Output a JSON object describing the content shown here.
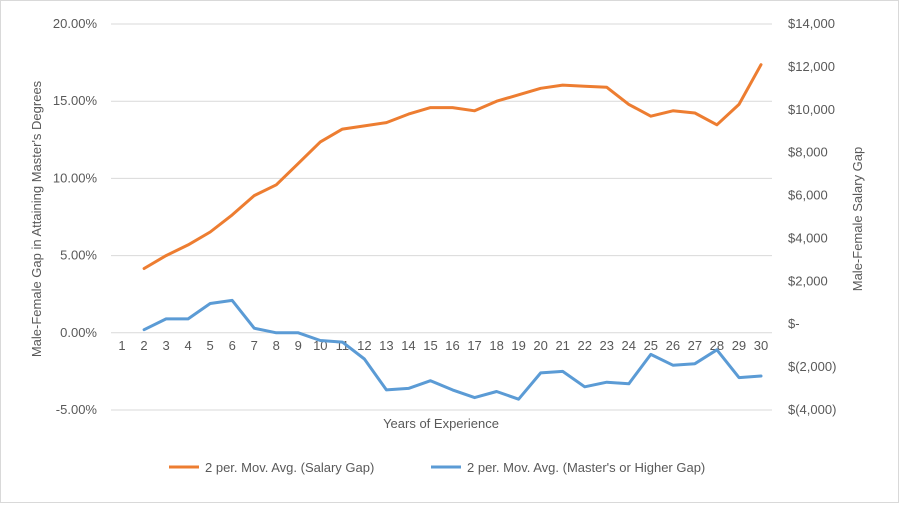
{
  "chart_data": {
    "type": "line",
    "xlabel": "Years of Experience",
    "y_left_label": "Male-Female Gap in Attaining Master's Degrees",
    "y_right_label": "Male-Female Salary Gap",
    "categories": [
      "1",
      "2",
      "3",
      "4",
      "5",
      "6",
      "7",
      "8",
      "9",
      "10",
      "11",
      "12",
      "13",
      "14",
      "15",
      "16",
      "17",
      "18",
      "19",
      "20",
      "21",
      "22",
      "23",
      "24",
      "25",
      "26",
      "27",
      "28",
      "29",
      "30"
    ],
    "y_left_ticks": [
      "20.00%",
      "15.00%",
      "10.00%",
      "5.00%",
      "0.00%",
      "-5.00%"
    ],
    "y_left_lim": [
      -5,
      20
    ],
    "y_right_ticks": [
      "$14,000",
      "$12,000",
      "$10,000",
      "$8,000",
      "$6,000",
      "$4,000",
      "$2,000",
      "$-",
      "$(2,000)",
      "$(4,000)"
    ],
    "y_right_lim": [
      -4000,
      14000
    ],
    "grid": true,
    "legend_position": "bottom",
    "series": [
      {
        "name": "2 per. Mov. Avg. (Salary Gap)",
        "axis": "right",
        "color": "#ED7D31",
        "values": [
          null,
          2600,
          3200,
          3700,
          4300,
          5100,
          6000,
          6500,
          7500,
          8500,
          9100,
          9250,
          9400,
          9800,
          10100,
          10100,
          9950,
          10400,
          10700,
          11000,
          11150,
          11100,
          11050,
          10250,
          9700,
          9950,
          9850,
          9300,
          10250,
          12100
        ]
      },
      {
        "name": "2 per. Mov. Avg. (Master's or Higher Gap)",
        "axis": "left",
        "color": "#5B9BD5",
        "values": [
          null,
          0.2,
          0.9,
          0.9,
          1.9,
          2.1,
          0.3,
          0.0,
          0.0,
          -0.5,
          -0.6,
          -1.7,
          -3.7,
          -3.6,
          -3.1,
          -3.7,
          -4.2,
          -3.8,
          -4.3,
          -2.6,
          -2.5,
          -3.5,
          -3.2,
          -3.3,
          -1.4,
          -2.1,
          -2.0,
          -1.1,
          -2.9,
          -2.8
        ]
      }
    ]
  }
}
